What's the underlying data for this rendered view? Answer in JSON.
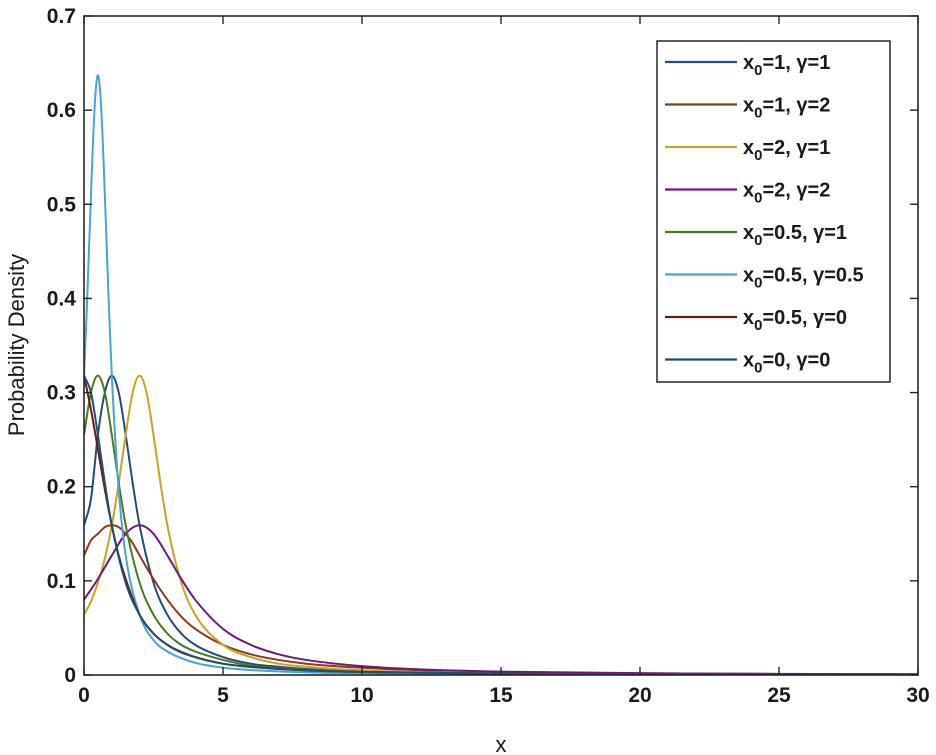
{
  "chart_data": {
    "type": "line",
    "xlabel": "x",
    "ylabel": "Probability Density",
    "xlim": [
      0,
      30
    ],
    "ylim": [
      0,
      0.7
    ],
    "xticks": [
      "0",
      "5",
      "10",
      "15",
      "20",
      "25",
      "30"
    ],
    "yticks": [
      "0",
      "0.1",
      "0.2",
      "0.3",
      "0.4",
      "0.5",
      "0.6",
      "0.7"
    ],
    "grid": false,
    "legend_position": "top-right",
    "series": [
      {
        "name": "x0=1, γ=1",
        "name_parts": {
          "base": "x",
          "sub": "0",
          "rest": "=1, γ=1"
        },
        "color": "#1f4e79",
        "x": [
          0,
          0.25,
          0.5,
          0.75,
          1,
          1.25,
          1.5,
          1.75,
          2,
          2.5,
          3,
          3.5,
          4,
          5,
          6,
          7,
          8,
          10,
          12,
          15,
          20,
          25,
          30
        ],
        "y": [
          0.159,
          0.187,
          0.255,
          0.3,
          0.318,
          0.3,
          0.255,
          0.204,
          0.159,
          0.098,
          0.064,
          0.044,
          0.032,
          0.019,
          0.012,
          0.0088,
          0.0064,
          0.0039,
          0.0026,
          0.0016,
          0.0009,
          0.0006,
          0.0004
        ]
      },
      {
        "name": "x0=1, γ=2",
        "name_parts": {
          "base": "x",
          "sub": "0",
          "rest": "=1, γ=2"
        },
        "color": "#8b3a1a",
        "x": [
          0,
          0.25,
          0.5,
          0.75,
          1,
          1.25,
          1.5,
          1.75,
          2,
          2.5,
          3,
          3.5,
          4,
          5,
          6,
          7,
          8,
          10,
          12,
          15,
          20,
          25,
          30
        ],
        "y": [
          0.127,
          0.143,
          0.15,
          0.157,
          0.159,
          0.157,
          0.15,
          0.14,
          0.127,
          0.102,
          0.08,
          0.062,
          0.049,
          0.032,
          0.022,
          0.016,
          0.012,
          0.0077,
          0.0052,
          0.0032,
          0.0018,
          0.0011,
          0.0008
        ]
      },
      {
        "name": "x0=2, γ=1",
        "name_parts": {
          "base": "x",
          "sub": "0",
          "rest": "=2, γ=1"
        },
        "color": "#c9a227",
        "x": [
          0,
          0.25,
          0.5,
          0.75,
          1,
          1.25,
          1.5,
          1.75,
          2,
          2.25,
          2.5,
          2.75,
          3,
          3.5,
          4,
          5,
          6,
          7,
          8,
          10,
          12,
          15,
          20,
          25,
          30
        ],
        "y": [
          0.064,
          0.078,
          0.098,
          0.124,
          0.159,
          0.204,
          0.255,
          0.3,
          0.318,
          0.3,
          0.255,
          0.204,
          0.159,
          0.098,
          0.064,
          0.032,
          0.019,
          0.012,
          0.0088,
          0.0049,
          0.0031,
          0.0019,
          0.001,
          0.0006,
          0.0004
        ]
      },
      {
        "name": "x0=2, γ=2",
        "name_parts": {
          "base": "x",
          "sub": "0",
          "rest": "=2, γ=2"
        },
        "color": "#6a1b7a",
        "x": [
          0,
          0.5,
          1,
          1.5,
          2,
          2.5,
          3,
          3.5,
          4,
          5,
          6,
          7,
          8,
          10,
          12,
          15,
          20,
          25,
          30
        ],
        "y": [
          0.08,
          0.102,
          0.127,
          0.15,
          0.159,
          0.15,
          0.127,
          0.102,
          0.08,
          0.049,
          0.032,
          0.022,
          0.016,
          0.0094,
          0.0061,
          0.0036,
          0.0019,
          0.0012,
          0.0008
        ]
      },
      {
        "name": "x0=0.5, γ=1",
        "name_parts": {
          "base": "x",
          "sub": "0",
          "rest": "=0.5, γ=1"
        },
        "color": "#4a7a1e",
        "x": [
          0,
          0.25,
          0.5,
          0.75,
          1,
          1.25,
          1.5,
          2,
          2.5,
          3,
          3.5,
          4,
          5,
          6,
          7,
          8,
          10,
          12,
          15,
          20,
          25,
          30
        ],
        "y": [
          0.255,
          0.3,
          0.318,
          0.3,
          0.255,
          0.204,
          0.159,
          0.098,
          0.064,
          0.044,
          0.032,
          0.025,
          0.016,
          0.01,
          0.0073,
          0.0056,
          0.0035,
          0.0024,
          0.0015,
          0.0008,
          0.0005,
          0.0004
        ]
      },
      {
        "name": "x0=0.5, γ=0.5",
        "name_parts": {
          "base": "x",
          "sub": "0",
          "rest": "=0.5, γ=0.5"
        },
        "color": "#4ba3d1",
        "x": [
          0,
          0.1,
          0.2,
          0.3,
          0.4,
          0.5,
          0.6,
          0.7,
          0.8,
          0.9,
          1,
          1.25,
          1.5,
          2,
          2.5,
          3,
          4,
          5,
          6,
          8,
          10,
          15,
          20,
          25,
          30
        ],
        "y": [
          0.318,
          0.388,
          0.469,
          0.549,
          0.612,
          0.637,
          0.612,
          0.549,
          0.469,
          0.388,
          0.318,
          0.196,
          0.127,
          0.064,
          0.037,
          0.025,
          0.013,
          0.0078,
          0.0052,
          0.0028,
          0.0018,
          0.0007,
          0.0004,
          0.0003,
          0.0002
        ]
      },
      {
        "name": "x0=0.5, γ=0",
        "name_parts": {
          "base": "x",
          "sub": "0",
          "rest": "=0.5, γ=0"
        },
        "color": "#6b1a1a",
        "x": [
          0,
          0.25,
          0.5,
          0.75,
          1,
          1.25,
          1.5,
          2,
          2.5,
          3,
          3.5,
          4,
          5,
          6,
          8,
          10,
          15,
          20,
          25,
          30
        ],
        "y": [
          0.318,
          0.282,
          0.24,
          0.197,
          0.159,
          0.127,
          0.102,
          0.064,
          0.044,
          0.032,
          0.024,
          0.019,
          0.012,
          0.0085,
          0.0049,
          0.0032,
          0.0014,
          0.0008,
          0.0005,
          0.0004
        ]
      },
      {
        "name": "x0=0, γ=0",
        "name_parts": {
          "base": "x",
          "sub": "0",
          "rest": "=0, γ=0"
        },
        "color": "#1f4e6e",
        "x": [
          0,
          0.25,
          0.5,
          0.75,
          1,
          1.5,
          2,
          2.5,
          3,
          4,
          5,
          6,
          8,
          10,
          15,
          20,
          25,
          30
        ],
        "y": [
          0.318,
          0.3,
          0.255,
          0.204,
          0.159,
          0.098,
          0.064,
          0.044,
          0.032,
          0.019,
          0.012,
          0.0088,
          0.0049,
          0.0032,
          0.0014,
          0.0008,
          0.0005,
          0.0004
        ]
      }
    ]
  }
}
